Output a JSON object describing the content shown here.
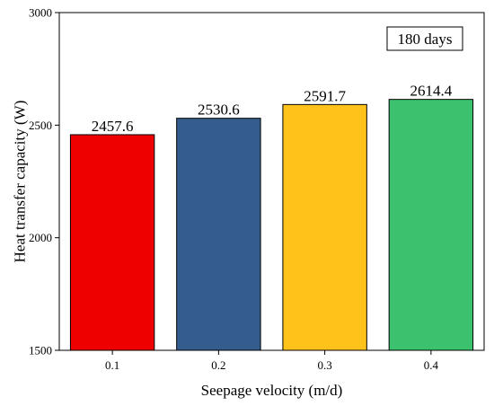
{
  "chart_data": {
    "type": "bar",
    "categories": [
      "0.1",
      "0.2",
      "0.3",
      "0.4"
    ],
    "values": [
      2457.6,
      2530.6,
      2591.7,
      2614.4
    ],
    "value_labels": [
      "2457.6",
      "2530.6",
      "2591.7",
      "2614.4"
    ],
    "bar_colors": [
      "#ee0000",
      "#345d8e",
      "#ffc21a",
      "#3cc26e"
    ],
    "title": "",
    "xlabel": "Seepage velocity (m/d)",
    "ylabel": "Heat transfer capacity (W)",
    "ylim": [
      1500,
      3000
    ],
    "yticks": [
      1500,
      2000,
      2500,
      3000
    ],
    "ytick_labels": [
      "1500",
      "2000",
      "2500",
      "3000"
    ],
    "annotation": "180 days",
    "annotation_placement": "top-right",
    "grid": false,
    "legend": false
  }
}
